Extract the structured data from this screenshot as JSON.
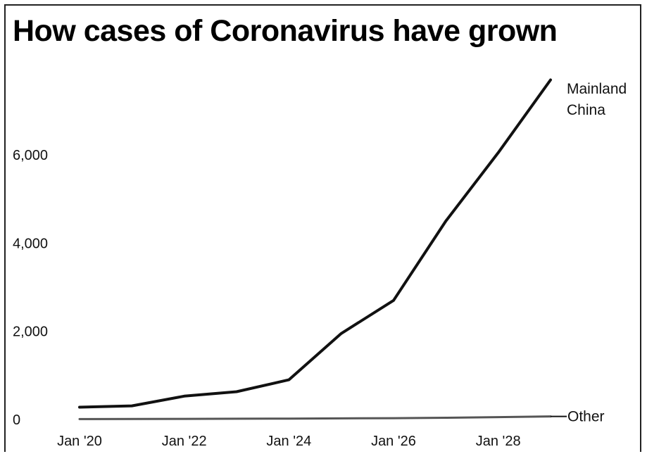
{
  "title": "How cases of Coronavirus have grown",
  "chart_data": {
    "type": "line",
    "title": "How cases of Coronavirus have grown",
    "xlabel": "",
    "ylabel": "",
    "x": [
      "Jan '20",
      "Jan '21",
      "Jan '22",
      "Jan '23",
      "Jan '24",
      "Jan '25",
      "Jan '26",
      "Jan '27",
      "Jan '28",
      "Jan '29"
    ],
    "x_tick_labels": [
      "Jan '20",
      "Jan '22",
      "Jan '24",
      "Jan '26",
      "Jan '28"
    ],
    "y_ticks": [
      0,
      2000,
      4000,
      6000
    ],
    "y_tick_labels": [
      "0",
      "2,000",
      "4,000",
      "6,000"
    ],
    "ylim": [
      0,
      7700
    ],
    "grid": false,
    "series": [
      {
        "label_lines": [
          "Mainland",
          "China"
        ],
        "color": "#111111",
        "values": [
          280,
          310,
          530,
          630,
          900,
          1950,
          2700,
          4500,
          6050,
          7700
        ]
      },
      {
        "label_lines": [
          "Other"
        ],
        "color": "#555555",
        "values": [
          10,
          12,
          14,
          18,
          20,
          25,
          30,
          40,
          55,
          70
        ]
      }
    ]
  }
}
